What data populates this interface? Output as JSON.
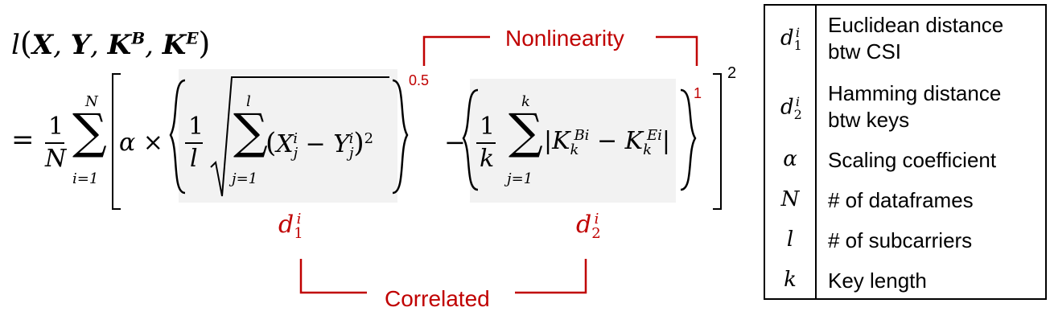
{
  "formula": {
    "lhs": "l(X, Y, K^B, K^E)",
    "equals": "=",
    "frac1_num": "1",
    "frac1_den": "N",
    "sum1_top": "N",
    "sum1_bottom": "i=1",
    "alpha_times": "α ×",
    "frac2_num": "1",
    "frac2_den": "l",
    "sum2_top": "l",
    "sum2_bottom": "j=1",
    "term1": "(X_j^i − Y_j^i)^2",
    "exp1": "0.5",
    "minus": "−",
    "frac3_num": "1",
    "frac3_den": "k",
    "sum3_top": "k",
    "sum3_bottom": "j=1",
    "term2": "|K_k^{Bi} − K_k^{Ei}|",
    "exp2": "1",
    "exp_outer": "2"
  },
  "annotations": {
    "nonlinearity": "Nonlinearity",
    "correlated": "Correlated",
    "d1": "d1i",
    "d2": "d2i"
  },
  "legend": [
    {
      "symbol": "d1i",
      "desc_line1": "Euclidean distance",
      "desc_line2": "btw CSI"
    },
    {
      "symbol": "d2i",
      "desc_line1": "Hamming distance",
      "desc_line2": "btw keys"
    },
    {
      "symbol": "α",
      "desc_line1": "Scaling coefficient",
      "desc_line2": ""
    },
    {
      "symbol": "N",
      "desc_line1": "# of dataframes",
      "desc_line2": ""
    },
    {
      "symbol": "l",
      "desc_line1": "# of subcarriers",
      "desc_line2": ""
    },
    {
      "symbol": "k",
      "desc_line1": "Key length",
      "desc_line2": ""
    }
  ],
  "colors": {
    "accent_red": "#c00000",
    "highlight_gray": "#f2f2f2"
  }
}
